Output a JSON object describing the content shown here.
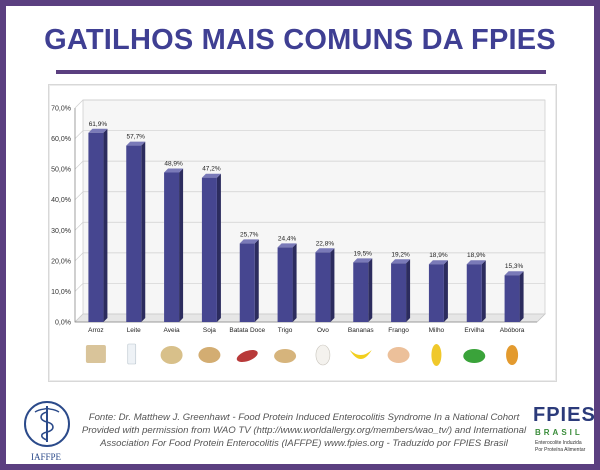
{
  "header": {
    "title": "GATILHOS MAIS COMUNS DA FPIES"
  },
  "colors": {
    "bar": "#464690",
    "bar_side": "#2c2c5e",
    "bar_top": "#7a7ab8",
    "frame": "#5b3f80",
    "title": "#3f3f93"
  },
  "chart_data": {
    "type": "bar",
    "title": "",
    "xlabel": "",
    "ylabel": "",
    "ylim": [
      0,
      70
    ],
    "yticks": [
      "0,0%",
      "10,0%",
      "20,0%",
      "30,0%",
      "40,0%",
      "50,0%",
      "60,0%",
      "70,0%"
    ],
    "ytick_values": [
      0,
      10,
      20,
      30,
      40,
      50,
      60,
      70
    ],
    "grid": true,
    "categories": [
      "Arroz",
      "Leite",
      "Aveia",
      "Soja",
      "Batata Doce",
      "Trigo",
      "Ovo",
      "Bananas",
      "Frango",
      "Milho",
      "Ervilha",
      "Abóbora"
    ],
    "values": [
      61.9,
      57.7,
      48.9,
      47.2,
      25.7,
      24.4,
      22.8,
      19.5,
      19.2,
      18.9,
      18.9,
      15.3
    ],
    "data_labels": [
      "61,9%",
      "57,7%",
      "48,9%",
      "47,2%",
      "25,7%",
      "24,4%",
      "22,8%",
      "19,5%",
      "19,2%",
      "18,9%",
      "18,9%",
      "15,3%"
    ],
    "category_icons": [
      "rice-icon",
      "milk-icon",
      "oats-icon",
      "soy-icon",
      "sweet-potato-icon",
      "wheat-icon",
      "egg-icon",
      "banana-icon",
      "chicken-icon",
      "corn-icon",
      "peas-icon",
      "squash-icon"
    ]
  },
  "footer": {
    "line1": "Fonte: Dr. Matthew J. Greenhawt - Food Protein Induced Enterocolitis Syndrome In a National Cohort",
    "line2": "Provided with permission from WAO TV (http://www.worldallergy.org/members/wao_tv/) and International",
    "line3": "Association For Food Protein Enterocolitis (IAFFPE) www.fpies.org  -  Traduzido por FPIES Brasil"
  },
  "logos": {
    "left_label": "IAFFPE",
    "right_word": "FPIES",
    "right_sub": "BRASIL",
    "right_tag1": "Enterocolite Induzida",
    "right_tag2": "Por Proteína Alimentar"
  }
}
